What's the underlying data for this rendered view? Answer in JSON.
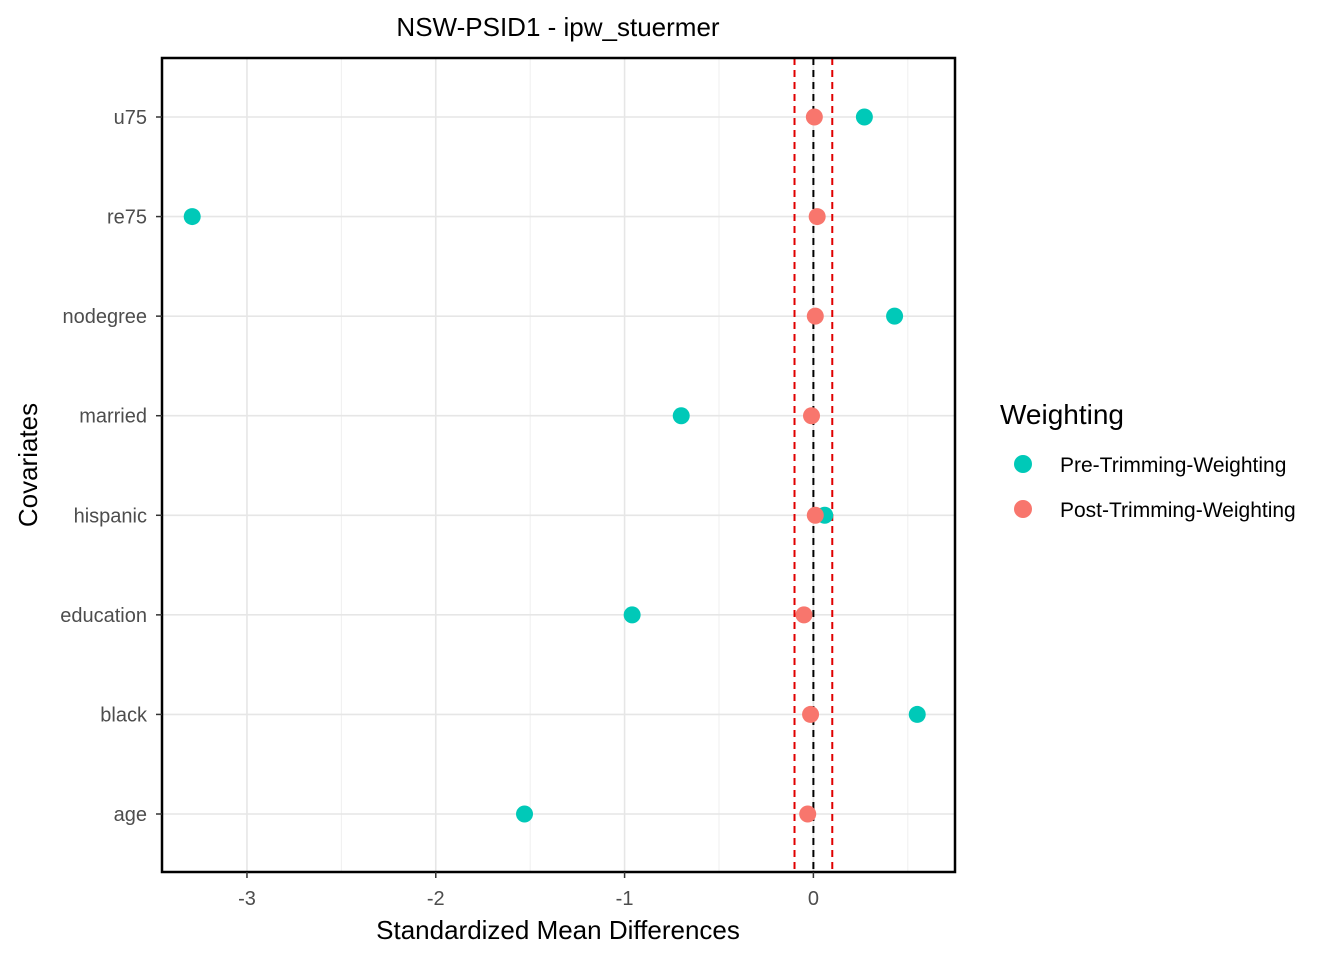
{
  "chart_data": {
    "type": "scatter",
    "title": "NSW-PSID1 - ipw_stuermer",
    "xlabel": "Standardized Mean Differences",
    "ylabel": "Covariates",
    "xlim": [
      -3.45,
      0.75
    ],
    "x_ticks": [
      -3,
      -2,
      -1,
      0
    ],
    "x_tick_labels": [
      "-3",
      "-2",
      "-1",
      "0"
    ],
    "categories": [
      "u75",
      "re75",
      "nodegree",
      "married",
      "hispanic",
      "education",
      "black",
      "age"
    ],
    "grid": true,
    "reference_lines": {
      "zero": 0,
      "threshold_low": -0.1,
      "threshold_high": 0.1,
      "zero_color": "#000000",
      "threshold_color": "#e00000"
    },
    "legend": {
      "title": "Weighting",
      "position": "right"
    },
    "series": [
      {
        "name": "Pre-Trimming-Weighting",
        "color": "#00c9b8",
        "points": [
          {
            "category": "u75",
            "x": 0.27
          },
          {
            "category": "re75",
            "x": -3.29
          },
          {
            "category": "nodegree",
            "x": 0.43
          },
          {
            "category": "married",
            "x": -0.7
          },
          {
            "category": "hispanic",
            "x": 0.06
          },
          {
            "category": "education",
            "x": -0.96
          },
          {
            "category": "black",
            "x": 0.55
          },
          {
            "category": "age",
            "x": -1.53
          }
        ]
      },
      {
        "name": "Post-Trimming-Weighting",
        "color": "#f8766d",
        "points": [
          {
            "category": "u75",
            "x": 0.005
          },
          {
            "category": "re75",
            "x": 0.02
          },
          {
            "category": "nodegree",
            "x": 0.01
          },
          {
            "category": "married",
            "x": -0.01
          },
          {
            "category": "hispanic",
            "x": 0.01
          },
          {
            "category": "education",
            "x": -0.05
          },
          {
            "category": "black",
            "x": -0.015
          },
          {
            "category": "age",
            "x": -0.03
          }
        ]
      }
    ]
  }
}
